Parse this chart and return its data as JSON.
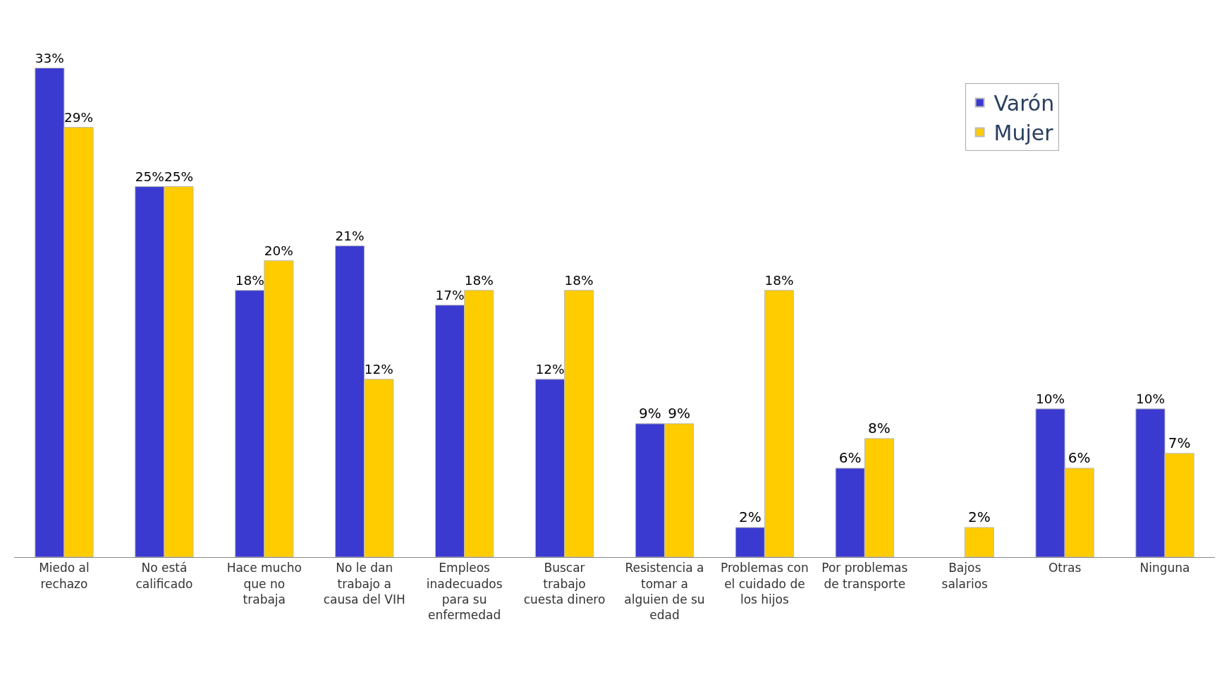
{
  "chart_data": {
    "type": "bar",
    "categories": [
      "Miedo al rechazo",
      "No está calificado",
      "Hace mucho que no trabaja",
      "No le dan trabajo a causa del VIH",
      "Empleos inadecuados para su enfermedad",
      "Buscar trabajo cuesta dinero",
      "Resistencia a tomar a alguien de su edad",
      "Problemas con el cuidado de los hijos",
      "Por problemas de transporte",
      "Bajos salarios",
      "Otras",
      "Ninguna"
    ],
    "series": [
      {
        "name": "Varón",
        "color": "#3a3ad0",
        "values": [
          33,
          25,
          18,
          21,
          17,
          12,
          9,
          2,
          6,
          null,
          10,
          10
        ],
        "value_labels": [
          "33%",
          "25%",
          "18%",
          "21%",
          "17%",
          "12%",
          "9%",
          "2%",
          "6%",
          null,
          "10%",
          "10%"
        ]
      },
      {
        "name": "Mujer",
        "color": "#ffcc00",
        "values": [
          29,
          25,
          20,
          12,
          18,
          18,
          9,
          18,
          8,
          2,
          6,
          7
        ],
        "value_labels": [
          "29%",
          "25%",
          "20%",
          "12%",
          "18%",
          "18%",
          "9%",
          "18%",
          "8%",
          "2%",
          "6%",
          "7%"
        ]
      }
    ],
    "legend": "top right"
  }
}
